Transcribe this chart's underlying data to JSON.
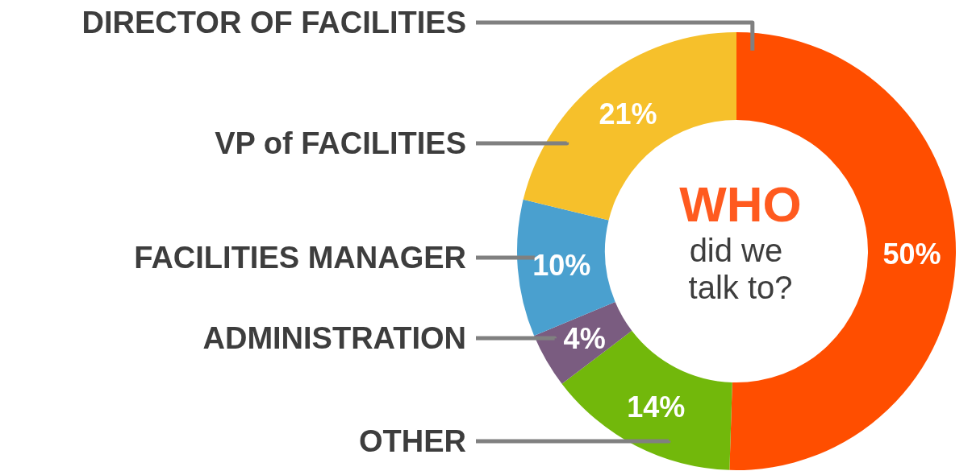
{
  "chart_data": {
    "type": "donut",
    "title": "WHO",
    "subtitle": "did we talk to?",
    "categories": [
      "DIRECTOR OF FACILITIES",
      "OTHER",
      "ADMINISTRATION",
      "FACILITIES MANAGER",
      "VP of FACILITIES"
    ],
    "values": [
      50,
      14,
      4,
      10,
      21
    ],
    "value_labels": [
      "50%",
      "14%",
      "4%",
      "10%",
      "21%"
    ],
    "colors": [
      "#ff4e00",
      "#72b80b",
      "#7a5c80",
      "#4aa0cf",
      "#f6c02b"
    ],
    "legend": false
  }
}
